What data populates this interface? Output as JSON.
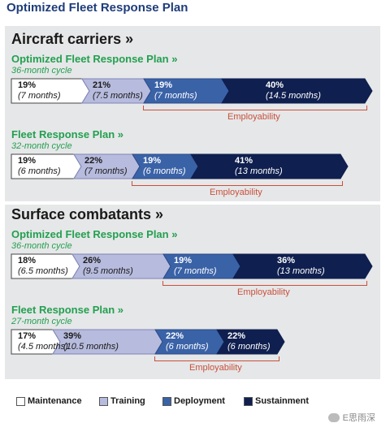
{
  "title": "Optimized Fleet Response Plan",
  "colors": {
    "maintenance": "#ffffff",
    "training": "#b7bbdd",
    "deployment": "#3a62a7",
    "sustainment": "#0f1f4f",
    "employability": "#c8503c",
    "plan_name": "#22a050"
  },
  "sections": [
    {
      "header": "Aircraft carriers »",
      "plans": [
        {
          "name": "Optimized Fleet Response Plan »",
          "cycle": "36-month cycle",
          "employability_label": "Employability",
          "segments": [
            {
              "phase": "maintenance",
              "percent": "19%",
              "months": "(7 months)"
            },
            {
              "phase": "training",
              "percent": "21%",
              "months": "(7.5 months)"
            },
            {
              "phase": "deployment",
              "percent": "19%",
              "months": "(7 months)"
            },
            {
              "phase": "sustainment",
              "percent": "40%",
              "months": "(14.5 months)"
            }
          ]
        },
        {
          "name": "Fleet Response Plan »",
          "cycle": "32-month cycle",
          "employability_label": "Employability",
          "segments": [
            {
              "phase": "maintenance",
              "percent": "19%",
              "months": "(6 months)"
            },
            {
              "phase": "training",
              "percent": "22%",
              "months": "(7 months)"
            },
            {
              "phase": "deployment",
              "percent": "19%",
              "months": "(6 months)"
            },
            {
              "phase": "sustainment",
              "percent": "41%",
              "months": "(13 months)"
            }
          ]
        }
      ]
    },
    {
      "header": "Surface combatants »",
      "plans": [
        {
          "name": "Optimized Fleet Response Plan »",
          "cycle": "36-month cycle",
          "employability_label": "Employability",
          "segments": [
            {
              "phase": "maintenance",
              "percent": "18%",
              "months": "(6.5 months)"
            },
            {
              "phase": "training",
              "percent": "26%",
              "months": "(9.5 months)"
            },
            {
              "phase": "deployment",
              "percent": "19%",
              "months": "(7 months)"
            },
            {
              "phase": "sustainment",
              "percent": "36%",
              "months": "(13 months)"
            }
          ]
        },
        {
          "name": "Fleet Response Plan »",
          "cycle": "27-month cycle",
          "employability_label": "Employability",
          "segments": [
            {
              "phase": "maintenance",
              "percent": "17%",
              "months": "(4.5 months)"
            },
            {
              "phase": "training",
              "percent": "39%",
              "months": "(10.5 months)"
            },
            {
              "phase": "deployment",
              "percent": "22%",
              "months": "(6 months)"
            },
            {
              "phase": "sustainment",
              "percent": "22%",
              "months": "(6 months)"
            }
          ]
        }
      ]
    }
  ],
  "legend": [
    {
      "phase": "maintenance",
      "label": "Maintenance"
    },
    {
      "phase": "training",
      "label": "Training"
    },
    {
      "phase": "deployment",
      "label": "Deployment"
    },
    {
      "phase": "sustainment",
      "label": "Sustainment"
    }
  ],
  "watermark": "E思雨深"
}
